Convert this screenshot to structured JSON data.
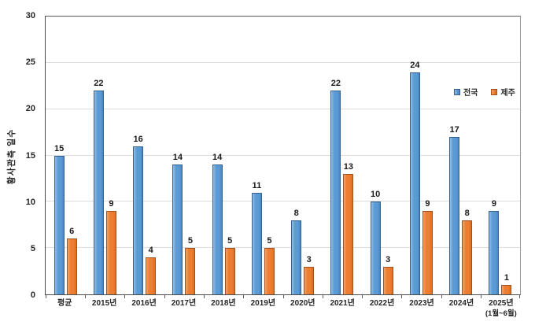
{
  "chart_data": {
    "type": "bar",
    "title": "",
    "ylabel": "황사관측 일수",
    "xlabel": "",
    "ylim": [
      0,
      30
    ],
    "yticks": [
      0,
      5,
      10,
      15,
      20,
      25,
      30
    ],
    "grid": true,
    "legend_position": "upper-right-inside",
    "categories": [
      "평균",
      "2015년",
      "2016년",
      "2017년",
      "2018년",
      "2019년",
      "2020년",
      "2021년",
      "2022년",
      "2023년",
      "2024년",
      "2025년"
    ],
    "category_sublabels": [
      "",
      "",
      "",
      "",
      "",
      "",
      "",
      "",
      "",
      "",
      "",
      "(1월~6월)"
    ],
    "series": [
      {
        "name": "전국",
        "values": [
          15,
          22,
          16,
          14,
          14,
          11,
          8,
          22,
          10,
          24,
          17,
          9
        ],
        "color": "#5B9BD5",
        "color_light": "#94BEE4",
        "color_dark": "#4A84C0",
        "border": "#37618E"
      },
      {
        "name": "제주",
        "values": [
          6,
          9,
          4,
          5,
          5,
          5,
          3,
          13,
          3,
          9,
          8,
          1
        ],
        "color": "#ED7D31",
        "color_light": "#F3A368",
        "color_dark": "#DE6D1F",
        "border": "#9E5122"
      }
    ],
    "colors": {
      "gridline": "#dcdcdc",
      "axis": "#4d4d4d",
      "value_label": "#1a1a1a"
    }
  }
}
